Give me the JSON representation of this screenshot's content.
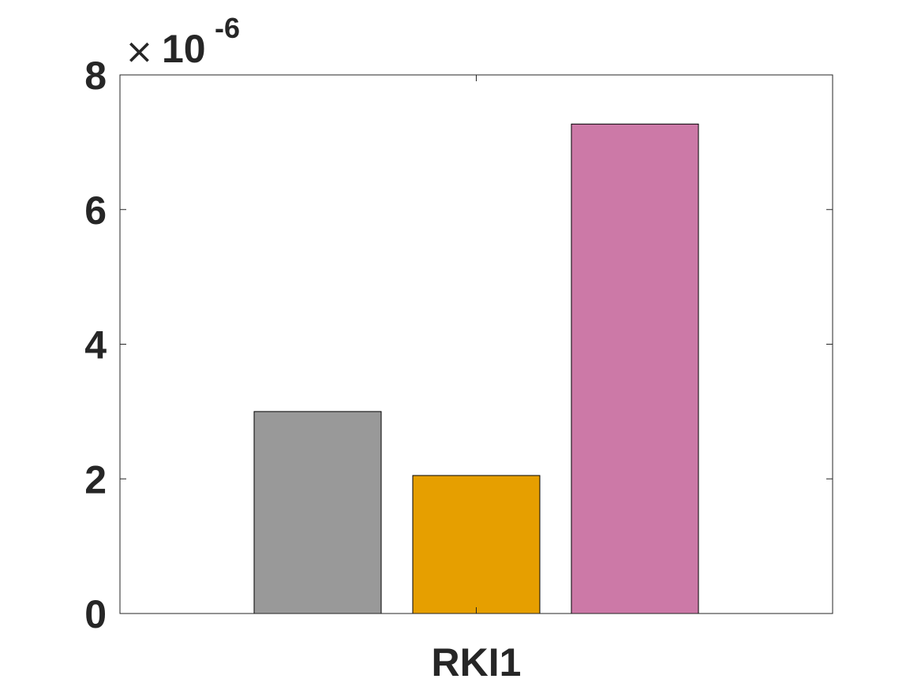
{
  "chart_data": {
    "type": "bar",
    "categories": [
      "RKI1"
    ],
    "series": [
      {
        "values": [
          3e-06
        ],
        "color": "#999999"
      },
      {
        "values": [
          2.05e-06
        ],
        "color": "#E69F00"
      },
      {
        "values": [
          7.27e-06
        ],
        "color": "#CC79A7"
      }
    ],
    "ylim": [
      0,
      8e-06
    ],
    "yticks": [
      0,
      2,
      4,
      6,
      8
    ],
    "ytick_labels": [
      "0",
      "2",
      "4",
      "6",
      "8"
    ],
    "y_exponent": {
      "times": "×",
      "base": "10",
      "power": "-6"
    },
    "xlabel": "",
    "ylabel": "",
    "title": "",
    "grid": false,
    "box": true,
    "axis_color": "#262626"
  }
}
